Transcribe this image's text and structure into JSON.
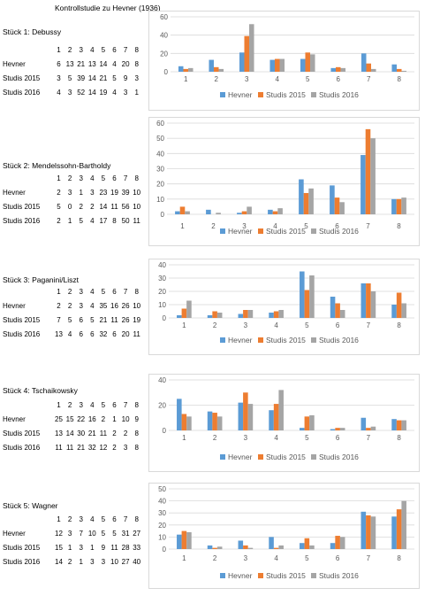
{
  "page_title": "Kontrollstudie zu Hevner (1936)",
  "legend": [
    {
      "label": "Hevner",
      "color": "#5B9BD5"
    },
    {
      "label": "Studis 2015",
      "color": "#ED7D31"
    },
    {
      "label": "Studis 2016",
      "color": "#A5A5A5"
    }
  ],
  "chart_data": [
    {
      "type": "bar",
      "title": "Stück 1: Debussy",
      "categories": [
        "1",
        "2",
        "3",
        "4",
        "5",
        "6",
        "7",
        "8"
      ],
      "ylim": [
        0,
        60
      ],
      "yticks": [
        "0",
        "20",
        "40",
        "60"
      ],
      "table_headers": [
        "1",
        "2",
        "3",
        "4",
        "5",
        "6",
        "7",
        "8"
      ],
      "table_rows": [
        {
          "label": "Hevner",
          "cells": [
            "6",
            "13",
            "21",
            "13",
            "14",
            "4",
            "20",
            "8"
          ]
        },
        {
          "label": "Studis 2015",
          "cells": [
            "3",
            "5",
            "39",
            "14",
            "21",
            "5",
            "9",
            "3"
          ]
        },
        {
          "label": "Studis 2016",
          "cells": [
            "4",
            "3",
            "52",
            "14",
            "19",
            "4",
            "3",
            "1"
          ]
        }
      ],
      "series": [
        {
          "name": "Hevner",
          "values": [
            6,
            13,
            21,
            13,
            14,
            4,
            20,
            8
          ]
        },
        {
          "name": "Studis 2015",
          "values": [
            3,
            5,
            39,
            14,
            21,
            5,
            9,
            3
          ]
        },
        {
          "name": "Studis 2016",
          "values": [
            4,
            3,
            52,
            14,
            19,
            4,
            3,
            1
          ]
        }
      ]
    },
    {
      "type": "bar",
      "title": "Stück 2: Mendelssohn-Bartholdy",
      "categories": [
        "1",
        "2",
        "3",
        "4",
        "5",
        "6",
        "7",
        "8"
      ],
      "ylim": [
        0,
        60
      ],
      "yticks": [
        "0",
        "10",
        "20",
        "30",
        "40",
        "50",
        "60"
      ],
      "table_headers": [
        "1",
        "2",
        "3",
        "4",
        "5",
        "6",
        "7",
        "8"
      ],
      "table_rows": [
        {
          "label": "Hevner",
          "cells": [
            "2",
            "3",
            "1",
            "3",
            "23",
            "19",
            "39",
            "10"
          ]
        },
        {
          "label": "Studis 2015",
          "cells": [
            "5",
            "0",
            "2",
            "2",
            "14",
            "11",
            "56",
            "10"
          ]
        },
        {
          "label": "Studis 2016",
          "cells": [
            "2",
            "1",
            "5",
            "4",
            "17",
            "8",
            "50",
            "11"
          ]
        }
      ],
      "series": [
        {
          "name": "Hevner",
          "values": [
            2,
            3,
            1,
            3,
            23,
            19,
            39,
            10
          ]
        },
        {
          "name": "Studis 2015",
          "values": [
            5,
            0,
            2,
            2,
            14,
            11,
            56,
            10
          ]
        },
        {
          "name": "Studis 2016",
          "values": [
            2,
            1,
            5,
            4,
            17,
            8,
            50,
            11
          ]
        }
      ]
    },
    {
      "type": "bar",
      "title": "Stück 3: Paganini/Liszt",
      "categories": [
        "1",
        "2",
        "3",
        "4",
        "5",
        "6",
        "7",
        "8"
      ],
      "ylim": [
        0,
        40
      ],
      "yticks": [
        "0",
        "10",
        "20",
        "30",
        "40"
      ],
      "table_headers": [
        "1",
        "2",
        "3",
        "4",
        "5",
        "6",
        "7",
        "8"
      ],
      "table_rows": [
        {
          "label": "Hevner",
          "cells": [
            "2",
            "2",
            "3",
            "4",
            "35",
            "16",
            "26",
            "10"
          ]
        },
        {
          "label": "Studis 2015",
          "cells": [
            "7",
            "5",
            "6",
            "5",
            "21",
            "11",
            "26",
            "19"
          ]
        },
        {
          "label": "Studis 2016",
          "cells": [
            "13",
            "4",
            "6",
            "6",
            "32",
            "6",
            "20",
            "11"
          ]
        }
      ],
      "series": [
        {
          "name": "Hevner",
          "values": [
            2,
            2,
            3,
            4,
            35,
            16,
            26,
            10
          ]
        },
        {
          "name": "Studis 2015",
          "values": [
            7,
            5,
            6,
            5,
            21,
            11,
            26,
            19
          ]
        },
        {
          "name": "Studis 2016",
          "values": [
            13,
            4,
            6,
            6,
            32,
            6,
            20,
            11
          ]
        }
      ]
    },
    {
      "type": "bar",
      "title": "Stück 4: Tschaikowsky",
      "categories": [
        "1",
        "2",
        "3",
        "4",
        "5",
        "6",
        "7",
        "8"
      ],
      "ylim": [
        0,
        40
      ],
      "yticks": [
        "0",
        "20",
        "40"
      ],
      "table_headers": [
        "1",
        "2",
        "3",
        "4",
        "5",
        "6",
        "7",
        "8"
      ],
      "table_rows": [
        {
          "label": "Hevner",
          "cells": [
            "25",
            "15",
            "22",
            "16",
            "2",
            "1",
            "10",
            "9"
          ]
        },
        {
          "label": "Studis 2015",
          "cells": [
            "13",
            "14",
            "30",
            "21",
            "11",
            "2",
            "2",
            "8"
          ]
        },
        {
          "label": "Studis 2016",
          "cells": [
            "11",
            "11",
            "21",
            "32",
            "12",
            "2",
            "3",
            "8"
          ]
        }
      ],
      "series": [
        {
          "name": "Hevner",
          "values": [
            25,
            15,
            22,
            16,
            2,
            1,
            10,
            9
          ]
        },
        {
          "name": "Studis 2015",
          "values": [
            13,
            14,
            30,
            21,
            11,
            2,
            2,
            8
          ]
        },
        {
          "name": "Studis 2016",
          "values": [
            11,
            11,
            21,
            32,
            12,
            2,
            3,
            8
          ]
        }
      ]
    },
    {
      "type": "bar",
      "title": "Stück 5: Wagner",
      "categories": [
        "1",
        "2",
        "3",
        "4",
        "5",
        "6",
        "7",
        "8"
      ],
      "ylim": [
        0,
        50
      ],
      "yticks": [
        "0",
        "10",
        "20",
        "30",
        "40",
        "50"
      ],
      "table_headers": [
        "1",
        "2",
        "3",
        "4",
        "5",
        "6",
        "7",
        "8"
      ],
      "table_rows": [
        {
          "label": "Hevner",
          "cells": [
            "12",
            "3",
            "7",
            "10",
            "5",
            "5",
            "31",
            "27"
          ]
        },
        {
          "label": "Studis 2015",
          "cells": [
            "15",
            "1",
            "3",
            "1",
            "9",
            "11",
            "28",
            "33"
          ]
        },
        {
          "label": "Studis 2016",
          "cells": [
            "14",
            "2",
            "1",
            "3",
            "3",
            "10",
            "27",
            "40"
          ]
        }
      ],
      "series": [
        {
          "name": "Hevner",
          "values": [
            12,
            3,
            7,
            10,
            5,
            5,
            31,
            27
          ]
        },
        {
          "name": "Studis 2015",
          "values": [
            15,
            1,
            3,
            1,
            9,
            11,
            28,
            33
          ]
        },
        {
          "name": "Studis 2016",
          "values": [
            14,
            2,
            1,
            3,
            3,
            10,
            27,
            40
          ]
        }
      ]
    }
  ]
}
